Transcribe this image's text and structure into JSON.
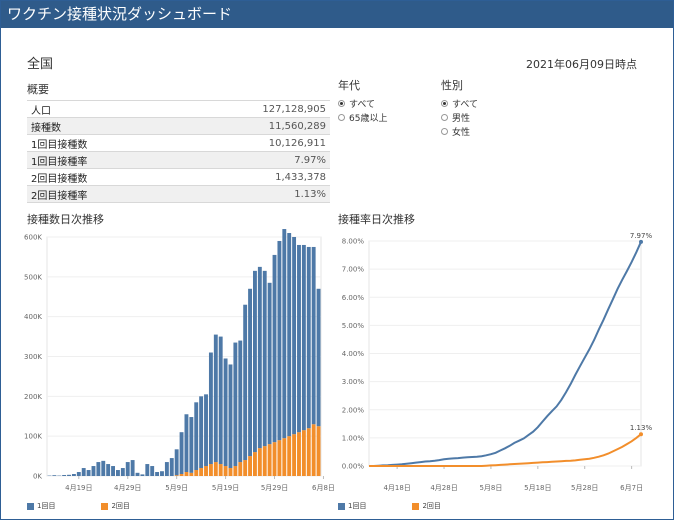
{
  "title": "ワクチン接種状況ダッシュボード",
  "region": "全国",
  "as_of": "2021年06月09日時点",
  "summary": {
    "title": "概要",
    "rows": [
      {
        "label": "人口",
        "value": "127,128,905"
      },
      {
        "label": "接種数",
        "value": "11,560,289"
      },
      {
        "label": "1回目接種数",
        "value": "10,126,911"
      },
      {
        "label": "1回目接種率",
        "value": "7.97%"
      },
      {
        "label": "2回目接種数",
        "value": "1,433,378"
      },
      {
        "label": "2回目接種率",
        "value": "1.13%"
      }
    ]
  },
  "filters": {
    "age": {
      "title": "年代",
      "options": [
        "すべて",
        "65歳以上"
      ],
      "selected": "すべて"
    },
    "sex": {
      "title": "性別",
      "options": [
        "すべて",
        "男性",
        "女性"
      ],
      "selected": "すべて"
    }
  },
  "colors": {
    "first_dose": "#4e79a7",
    "second_dose": "#f28e2b"
  },
  "bar_chart": {
    "title": "接種数日次推移",
    "legend": [
      "1回目",
      "2回目"
    ]
  },
  "line_chart": {
    "title": "接種率日次推移",
    "legend": [
      "1回目",
      "2回目"
    ],
    "end_label_first": "7.97%",
    "end_label_second": "1.13%"
  },
  "chart_data": [
    {
      "type": "bar",
      "title": "接種数日次推移",
      "stacked": true,
      "yticks": [
        "0K",
        "100K",
        "200K",
        "300K",
        "400K",
        "500K",
        "600K"
      ],
      "ylim": [
        0,
        600000
      ],
      "xticks": [
        {
          "label": "4月19日",
          "index": 6
        },
        {
          "label": "4月29日",
          "index": 16
        },
        {
          "label": "5月9日",
          "index": 26
        },
        {
          "label": "5月19日",
          "index": 36
        },
        {
          "label": "5月29日",
          "index": 46
        },
        {
          "label": "6月8日",
          "index": 56
        }
      ],
      "series": [
        {
          "name": "1回目",
          "values": [
            1000,
            2000,
            1000,
            2500,
            3000,
            5000,
            10000,
            20000,
            15000,
            25000,
            35000,
            38000,
            30000,
            25000,
            15000,
            20000,
            35000,
            40000,
            8000,
            4000,
            30000,
            25000,
            10000,
            12000,
            35000,
            45000,
            65000,
            105000,
            145000,
            140000,
            170000,
            180000,
            180000,
            280000,
            320000,
            320000,
            270000,
            260000,
            310000,
            305000,
            390000,
            420000,
            455000,
            455000,
            440000,
            405000,
            470000,
            500000,
            525000,
            510000,
            495000,
            470000,
            465000,
            455000,
            445000,
            345000
          ]
        },
        {
          "name": "2回目",
          "values": [
            0,
            0,
            0,
            0,
            0,
            0,
            0,
            0,
            0,
            0,
            0,
            0,
            0,
            0,
            0,
            0,
            0,
            0,
            0,
            0,
            0,
            0,
            0,
            0,
            0,
            0,
            2000,
            5000,
            10000,
            8000,
            15000,
            20000,
            25000,
            30000,
            35000,
            30000,
            25000,
            20000,
            25000,
            35000,
            40000,
            50000,
            60000,
            70000,
            75000,
            80000,
            85000,
            90000,
            95000,
            100000,
            105000,
            110000,
            115000,
            120000,
            130000,
            125000
          ]
        }
      ]
    },
    {
      "type": "line",
      "title": "接種率日次推移",
      "yticks": [
        "0.00%",
        "1.00%",
        "2.00%",
        "3.00%",
        "4.00%",
        "5.00%",
        "6.00%",
        "7.00%",
        "8.00%"
      ],
      "ylim": [
        0,
        8
      ],
      "xticks": [
        {
          "label": "4月18日",
          "index": 6
        },
        {
          "label": "4月28日",
          "index": 16
        },
        {
          "label": "5月8日",
          "index": 26
        },
        {
          "label": "5月18日",
          "index": 36
        },
        {
          "label": "5月28日",
          "index": 46
        },
        {
          "label": "6月7日",
          "index": 56
        }
      ],
      "series": [
        {
          "name": "1回目",
          "values": [
            0,
            0.0,
            0.01,
            0.02,
            0.03,
            0.04,
            0.05,
            0.06,
            0.08,
            0.1,
            0.12,
            0.14,
            0.16,
            0.17,
            0.19,
            0.21,
            0.24,
            0.26,
            0.27,
            0.28,
            0.3,
            0.31,
            0.32,
            0.33,
            0.35,
            0.38,
            0.42,
            0.47,
            0.55,
            0.63,
            0.72,
            0.82,
            0.9,
            0.98,
            1.1,
            1.22,
            1.38,
            1.58,
            1.77,
            1.95,
            2.12,
            2.35,
            2.62,
            2.92,
            3.24,
            3.55,
            3.85,
            4.15,
            4.48,
            4.85,
            5.2,
            5.57,
            5.93,
            6.3,
            6.62,
            6.93,
            7.25,
            7.6,
            7.97
          ]
        },
        {
          "name": "2回目",
          "values": [
            0,
            0,
            0,
            0,
            0,
            0,
            0,
            0,
            0,
            0,
            0,
            0,
            0,
            0,
            0,
            0,
            0,
            0,
            0,
            0,
            0,
            0,
            0,
            0,
            0,
            0.01,
            0.02,
            0.03,
            0.04,
            0.05,
            0.06,
            0.07,
            0.08,
            0.09,
            0.1,
            0.11,
            0.12,
            0.13,
            0.14,
            0.15,
            0.16,
            0.17,
            0.18,
            0.19,
            0.2,
            0.22,
            0.24,
            0.26,
            0.29,
            0.33,
            0.38,
            0.44,
            0.52,
            0.6,
            0.68,
            0.78,
            0.88,
            1.0,
            1.13
          ]
        }
      ]
    }
  ]
}
